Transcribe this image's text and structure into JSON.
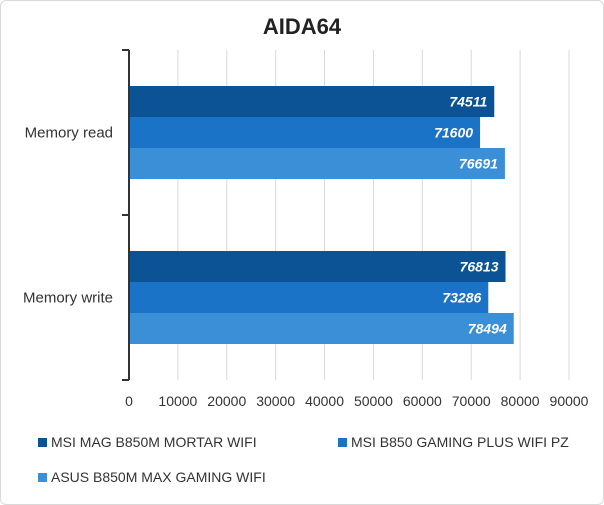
{
  "chart_data": {
    "type": "bar",
    "orientation": "horizontal",
    "title": "AIDA64",
    "categories": [
      "Memory read",
      "Memory write"
    ],
    "series": [
      {
        "name": "MSI MAG B850M MORTAR WIFI",
        "color": "#0b5394",
        "values": [
          74511,
          76813
        ]
      },
      {
        "name": "MSI B850 GAMING PLUS WIFI PZ",
        "color": "#1a73c7",
        "values": [
          71600,
          73286
        ]
      },
      {
        "name": "ASUS B850M MAX GAMING WIFI",
        "color": "#3a8fd6",
        "values": [
          76691,
          78494
        ]
      }
    ],
    "xlim": [
      0,
      90000
    ],
    "xticks": [
      0,
      10000,
      20000,
      30000,
      40000,
      50000,
      60000,
      70000,
      80000,
      90000
    ],
    "xtick_labels": [
      "0",
      "10000",
      "20000",
      "30000",
      "40000",
      "50000",
      "60000",
      "70000",
      "80000",
      "90000"
    ],
    "grid": true,
    "legend_position": "bottom"
  }
}
